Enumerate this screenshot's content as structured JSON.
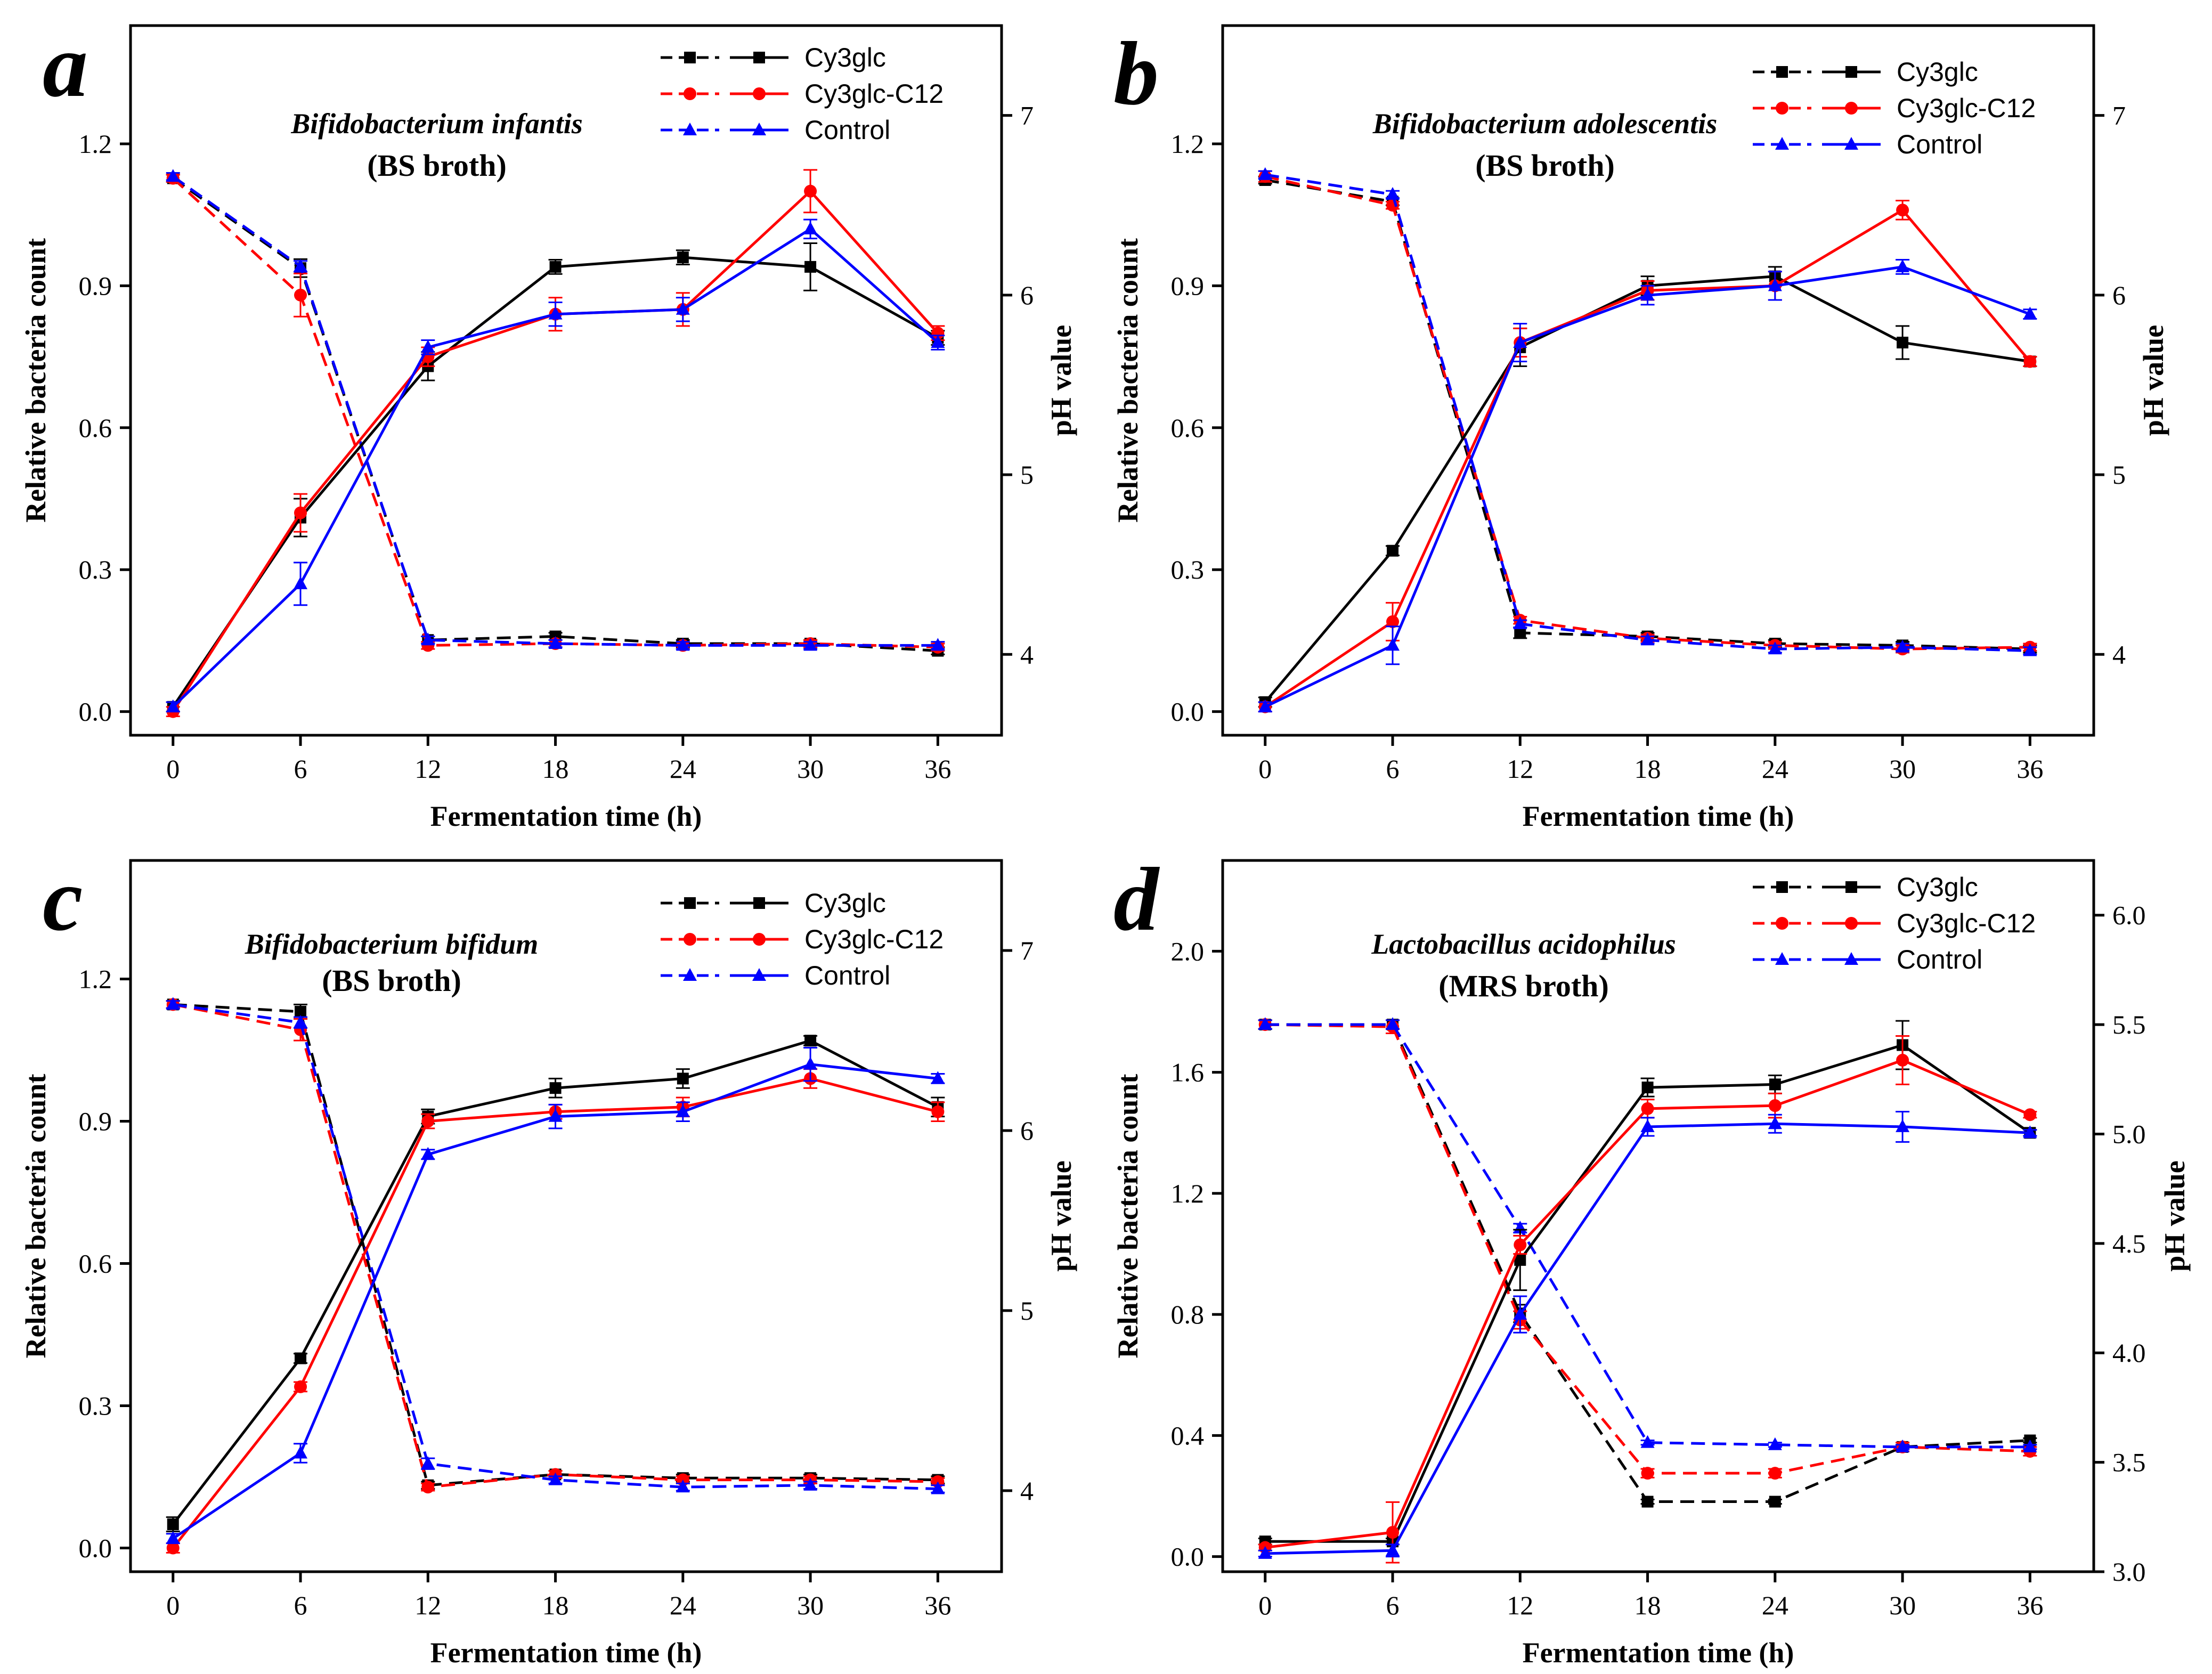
{
  "figure": {
    "xlabel": "Fermentation time (h)",
    "ylabel_left": "Relative bacteria count",
    "ylabel_right": "pH value"
  },
  "colors": {
    "Cy3glc": "#000000",
    "Cy3glc-C12": "#ff0000",
    "Control": "#0000ff"
  },
  "chart_data": [
    {
      "type": "line",
      "panel_label": "a",
      "organism": "Bifidobacterium infantis",
      "medium": "(BS broth)",
      "xlabel": "Fermentation time (h)",
      "ylabel": "Relative bacteria count",
      "y2label": "pH value",
      "x": [
        0,
        6,
        12,
        18,
        24,
        30,
        36
      ],
      "ylim": [
        -0.05,
        1.45
      ],
      "yticks": [
        0.0,
        0.3,
        0.6,
        0.9,
        1.2
      ],
      "yticklabels": [
        "0.0",
        "0.3",
        "0.6",
        "0.9",
        "1.2"
      ],
      "y2lim": [
        3.55,
        7.5
      ],
      "y2ticks": [
        4,
        5,
        6,
        7
      ],
      "y2ticklabels": [
        "4",
        "5",
        "6",
        "7"
      ],
      "series": [
        {
          "name": "Cy3glc",
          "axis": "left",
          "style": "solid",
          "marker": "square",
          "values": [
            0.01,
            0.41,
            0.73,
            0.94,
            0.96,
            0.94,
            0.79
          ],
          "errors": [
            0.01,
            0.04,
            0.03,
            0.015,
            0.015,
            0.05,
            0.015
          ]
        },
        {
          "name": "Cy3glc-C12",
          "axis": "left",
          "style": "solid",
          "marker": "circle",
          "values": [
            0.0,
            0.42,
            0.75,
            0.84,
            0.85,
            1.1,
            0.8
          ],
          "errors": [
            0.01,
            0.04,
            0.02,
            0.035,
            0.035,
            0.045,
            0.015
          ]
        },
        {
          "name": "Control",
          "axis": "left",
          "style": "solid",
          "marker": "triangle",
          "values": [
            0.01,
            0.27,
            0.77,
            0.84,
            0.85,
            1.02,
            0.78
          ],
          "errors": [
            0.01,
            0.045,
            0.015,
            0.025,
            0.025,
            0.02,
            0.015
          ]
        },
        {
          "name": "Cy3glc",
          "axis": "right",
          "style": "dashed",
          "marker": "square",
          "values": [
            6.65,
            6.15,
            4.08,
            4.1,
            4.06,
            4.06,
            4.02
          ],
          "errors": [
            0.02,
            0.05,
            0.02,
            0.02,
            0.02,
            0.02,
            0.02
          ]
        },
        {
          "name": "Cy3glc-C12",
          "axis": "right",
          "style": "dashed",
          "marker": "circle",
          "values": [
            6.65,
            6.0,
            4.05,
            4.06,
            4.05,
            4.06,
            4.04
          ],
          "errors": [
            0.02,
            0.12,
            0.02,
            0.02,
            0.02,
            0.02,
            0.02
          ]
        },
        {
          "name": "Control",
          "axis": "right",
          "style": "dashed",
          "marker": "triangle",
          "values": [
            6.66,
            6.16,
            4.08,
            4.06,
            4.05,
            4.05,
            4.05
          ],
          "errors": [
            0.02,
            0.03,
            0.02,
            0.02,
            0.02,
            0.02,
            0.02
          ]
        }
      ]
    },
    {
      "type": "line",
      "panel_label": "b",
      "organism": "Bifidobacterium adolescentis",
      "medium": "(BS broth)",
      "xlabel": "Fermentation time (h)",
      "ylabel": "Relative bacteria count",
      "y2label": "pH value",
      "x": [
        0,
        6,
        12,
        18,
        24,
        30,
        36
      ],
      "ylim": [
        -0.05,
        1.45
      ],
      "yticks": [
        0.0,
        0.3,
        0.6,
        0.9,
        1.2
      ],
      "yticklabels": [
        "0.0",
        "0.3",
        "0.6",
        "0.9",
        "1.2"
      ],
      "y2lim": [
        3.55,
        7.5
      ],
      "y2ticks": [
        4,
        5,
        6,
        7
      ],
      "y2ticklabels": [
        "4",
        "5",
        "6",
        "7"
      ],
      "series": [
        {
          "name": "Cy3glc",
          "axis": "left",
          "style": "solid",
          "marker": "square",
          "values": [
            0.02,
            0.34,
            0.77,
            0.9,
            0.92,
            0.78,
            0.74
          ],
          "errors": [
            0.01,
            0.01,
            0.04,
            0.02,
            0.02,
            0.035,
            0.01
          ]
        },
        {
          "name": "Cy3glc-C12",
          "axis": "left",
          "style": "solid",
          "marker": "circle",
          "values": [
            0.01,
            0.19,
            0.78,
            0.89,
            0.9,
            1.06,
            0.74
          ],
          "errors": [
            0.01,
            0.04,
            0.03,
            0.02,
            0.03,
            0.02,
            0.01
          ]
        },
        {
          "name": "Control",
          "axis": "left",
          "style": "solid",
          "marker": "triangle",
          "values": [
            0.01,
            0.14,
            0.78,
            0.88,
            0.9,
            0.94,
            0.84
          ],
          "errors": [
            0.01,
            0.04,
            0.04,
            0.02,
            0.03,
            0.015,
            0.01
          ]
        },
        {
          "name": "Cy3glc",
          "axis": "right",
          "style": "dashed",
          "marker": "square",
          "values": [
            6.64,
            6.52,
            4.12,
            4.1,
            4.06,
            4.05,
            4.03
          ],
          "errors": [
            0.02,
            0.02,
            0.03,
            0.02,
            0.02,
            0.02,
            0.02
          ]
        },
        {
          "name": "Cy3glc-C12",
          "axis": "right",
          "style": "dashed",
          "marker": "circle",
          "values": [
            6.66,
            6.5,
            4.19,
            4.09,
            4.05,
            4.03,
            4.04
          ],
          "errors": [
            0.03,
            0.02,
            0.02,
            0.02,
            0.02,
            0.02,
            0.02
          ]
        },
        {
          "name": "Control",
          "axis": "right",
          "style": "dashed",
          "marker": "triangle",
          "values": [
            6.67,
            6.56,
            4.17,
            4.08,
            4.03,
            4.04,
            4.02
          ],
          "errors": [
            0.02,
            0.02,
            0.02,
            0.02,
            0.02,
            0.02,
            0.02
          ]
        }
      ]
    },
    {
      "type": "line",
      "panel_label": "c",
      "organism": "Bifidobacterium bifidum",
      "medium": "(BS broth)",
      "xlabel": "Fermentation time (h)",
      "ylabel": "Relative bacteria count",
      "y2label": "pH value",
      "x": [
        0,
        6,
        12,
        18,
        24,
        30,
        36
      ],
      "ylim": [
        -0.05,
        1.45
      ],
      "yticks": [
        0.0,
        0.3,
        0.6,
        0.9,
        1.2
      ],
      "yticklabels": [
        "0.0",
        "0.3",
        "0.6",
        "0.9",
        "1.2"
      ],
      "y2lim": [
        3.55,
        7.5
      ],
      "y2ticks": [
        4,
        5,
        6,
        7
      ],
      "y2ticklabels": [
        "4",
        "5",
        "6",
        "7"
      ],
      "series": [
        {
          "name": "Cy3glc",
          "axis": "left",
          "style": "solid",
          "marker": "square",
          "values": [
            0.05,
            0.4,
            0.91,
            0.97,
            0.99,
            1.07,
            0.93
          ],
          "errors": [
            0.015,
            0.01,
            0.015,
            0.02,
            0.02,
            0.01,
            0.02
          ]
        },
        {
          "name": "Cy3glc-C12",
          "axis": "left",
          "style": "solid",
          "marker": "circle",
          "values": [
            0.0,
            0.34,
            0.9,
            0.92,
            0.93,
            0.99,
            0.92
          ],
          "errors": [
            0.01,
            0.01,
            0.015,
            0.015,
            0.02,
            0.02,
            0.02
          ]
        },
        {
          "name": "Control",
          "axis": "left",
          "style": "solid",
          "marker": "triangle",
          "values": [
            0.02,
            0.2,
            0.83,
            0.91,
            0.92,
            1.02,
            0.99
          ],
          "errors": [
            0.01,
            0.02,
            0.01,
            0.025,
            0.02,
            0.035,
            0.01
          ]
        },
        {
          "name": "Cy3glc",
          "axis": "right",
          "style": "dashed",
          "marker": "square",
          "values": [
            6.7,
            6.66,
            4.03,
            4.09,
            4.07,
            4.07,
            4.06
          ],
          "errors": [
            0.02,
            0.04,
            0.02,
            0.02,
            0.02,
            0.02,
            0.02
          ]
        },
        {
          "name": "Cy3glc-C12",
          "axis": "right",
          "style": "dashed",
          "marker": "circle",
          "values": [
            6.7,
            6.56,
            4.02,
            4.09,
            4.06,
            4.06,
            4.05
          ],
          "errors": [
            0.02,
            0.06,
            0.02,
            0.02,
            0.02,
            0.02,
            0.02
          ]
        },
        {
          "name": "Control",
          "axis": "right",
          "style": "dashed",
          "marker": "triangle",
          "values": [
            6.7,
            6.6,
            4.15,
            4.06,
            4.02,
            4.03,
            4.01
          ],
          "errors": [
            0.02,
            0.03,
            0.03,
            0.02,
            0.02,
            0.02,
            0.02
          ]
        }
      ]
    },
    {
      "type": "line",
      "panel_label": "d",
      "organism": "Lactobacillus acidophilus",
      "medium": "(MRS broth)",
      "xlabel": "Fermentation time (h)",
      "ylabel": "Relative bacteria count",
      "y2label": "pH value",
      "x": [
        0,
        6,
        12,
        18,
        24,
        30,
        36
      ],
      "ylim": [
        -0.05,
        2.3
      ],
      "yticks": [
        0.0,
        0.4,
        0.8,
        1.2,
        1.6,
        2.0
      ],
      "yticklabels": [
        "0.0",
        "0.4",
        "0.8",
        "1.2",
        "1.6",
        "2.0"
      ],
      "y2lim": [
        3.0,
        6.25
      ],
      "y2ticks": [
        3.0,
        3.5,
        4.0,
        4.5,
        5.0,
        5.5,
        6.0
      ],
      "y2ticklabels": [
        "3.0",
        "3.5",
        "4.0",
        "4.5",
        "5.0",
        "5.5",
        "6.0"
      ],
      "series": [
        {
          "name": "Cy3glc",
          "axis": "left",
          "style": "solid",
          "marker": "square",
          "values": [
            0.05,
            0.05,
            0.98,
            1.55,
            1.56,
            1.69,
            1.4
          ],
          "errors": [
            0.01,
            0.01,
            0.1,
            0.03,
            0.03,
            0.08,
            0.01
          ]
        },
        {
          "name": "Cy3glc-C12",
          "axis": "left",
          "style": "solid",
          "marker": "circle",
          "values": [
            0.03,
            0.08,
            1.03,
            1.48,
            1.49,
            1.64,
            1.46
          ],
          "errors": [
            0.01,
            0.1,
            0.03,
            0.03,
            0.04,
            0.08,
            0.01
          ]
        },
        {
          "name": "Control",
          "axis": "left",
          "style": "solid",
          "marker": "triangle",
          "values": [
            0.01,
            0.02,
            0.8,
            1.42,
            1.43,
            1.42,
            1.4
          ],
          "errors": [
            0.01,
            0.02,
            0.06,
            0.03,
            0.03,
            0.05,
            0.01
          ]
        },
        {
          "name": "Cy3glc",
          "axis": "right",
          "style": "dashed",
          "marker": "square",
          "values": [
            5.5,
            5.5,
            4.18,
            3.32,
            3.32,
            3.57,
            3.6
          ],
          "errors": [
            0.02,
            0.02,
            0.04,
            0.01,
            0.01,
            0.01,
            0.01
          ]
        },
        {
          "name": "Cy3glc-C12",
          "axis": "right",
          "style": "dashed",
          "marker": "circle",
          "values": [
            5.5,
            5.49,
            4.15,
            3.45,
            3.45,
            3.57,
            3.55
          ],
          "errors": [
            0.02,
            0.03,
            0.04,
            0.02,
            0.02,
            0.02,
            0.02
          ]
        },
        {
          "name": "Control",
          "axis": "right",
          "style": "dashed",
          "marker": "triangle",
          "values": [
            5.5,
            5.5,
            4.57,
            3.59,
            3.58,
            3.57,
            3.57
          ],
          "errors": [
            0.02,
            0.02,
            0.02,
            0.01,
            0.01,
            0.01,
            0.01
          ]
        }
      ]
    }
  ]
}
